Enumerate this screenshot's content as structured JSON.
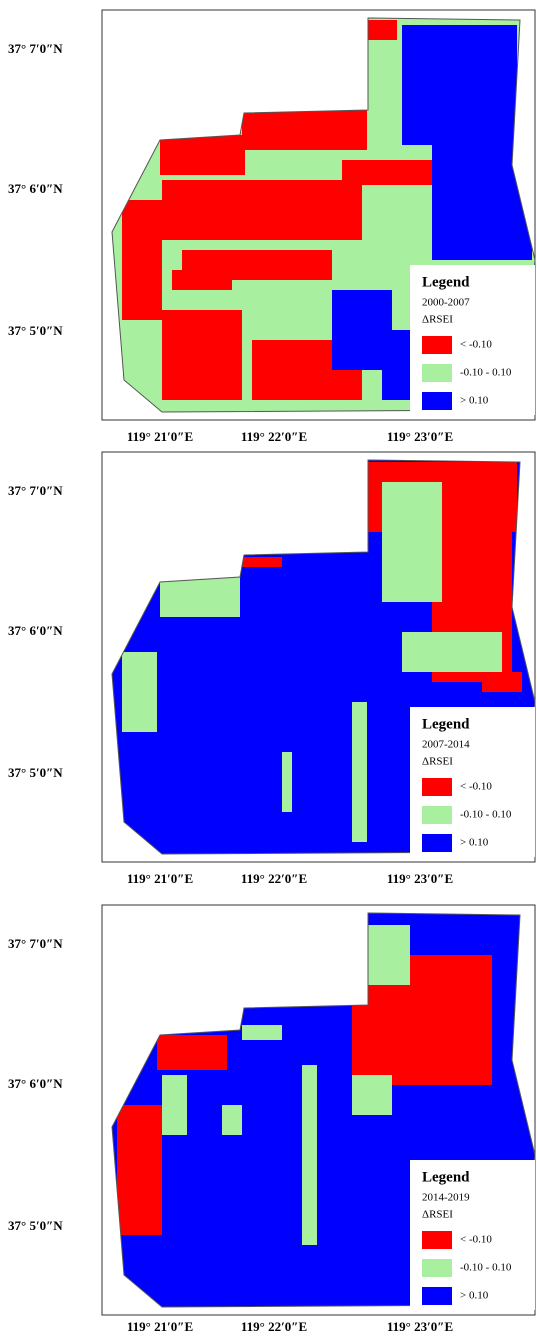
{
  "legend_title": "Legend",
  "index_label": "ΔRSEI",
  "classes": [
    {
      "label": "< -0.10",
      "color": "#ff0000"
    },
    {
      "label": "-0.10 - 0.10",
      "color": "#a8f0a0"
    },
    {
      "label": "> 0.10",
      "color": "#0000ff"
    }
  ],
  "panels": [
    {
      "period": "2000-2007",
      "latitude_labels": [
        "37° 7′0″N",
        "37° 6′0″N",
        "37° 5′0″N"
      ],
      "longitude_labels": [
        "119° 21′0″E",
        "119° 22′0″E",
        "119° 23′0″E"
      ]
    },
    {
      "period": "2007-2014",
      "latitude_labels": [
        "37° 7′0″N",
        "37° 6′0″N",
        "37° 5′0″N"
      ],
      "longitude_labels": [
        "119° 21′0″E",
        "119° 22′0″E",
        "119° 23′0″E"
      ]
    },
    {
      "period": "2014-2019",
      "latitude_labels": [
        "37° 7′0″N",
        "37° 6′0″N",
        "37° 5′0″N"
      ],
      "longitude_labels": [
        "119° 21′0″E",
        "119° 22′0″E",
        "119° 23′0″E"
      ]
    }
  ]
}
